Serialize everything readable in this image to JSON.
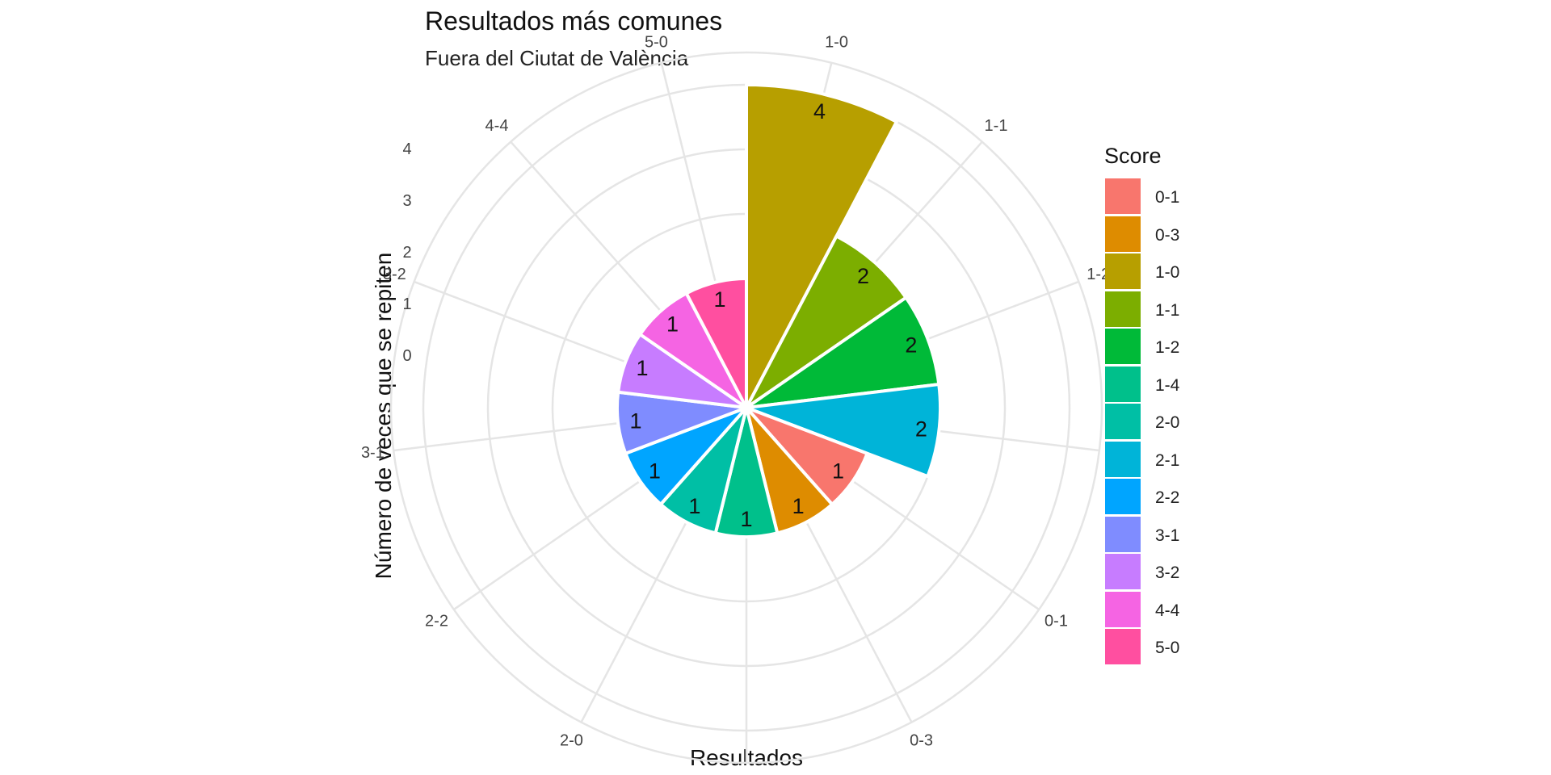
{
  "chart_data": {
    "type": "bar",
    "coord": "polar",
    "title": "Resultados más comunes",
    "subtitle": "Fuera del Ciutat de València",
    "xlabel": "Resultados",
    "ylabel": "Número de veces que se repiten",
    "ylim": [
      0,
      4
    ],
    "y_ticks": [
      "0",
      "1",
      "2",
      "3",
      "4"
    ],
    "grid": true,
    "legend": {
      "title": "Score",
      "position": "right"
    },
    "categories": [
      "1-0",
      "1-1",
      "1-2",
      "2-1",
      "0-1",
      "0-3",
      "1-4",
      "2-0",
      "2-2",
      "3-1",
      "3-2",
      "4-4",
      "5-0"
    ],
    "values": [
      4,
      2,
      2,
      2,
      1,
      1,
      1,
      1,
      1,
      1,
      1,
      1,
      1
    ],
    "bars": [
      {
        "label": "1-0",
        "value": 4,
        "color": "#B79F00"
      },
      {
        "label": "1-1",
        "value": 2,
        "color": "#7CAE00"
      },
      {
        "label": "1-2",
        "value": 2,
        "color": "#00BA38"
      },
      {
        "label": "2-1",
        "value": 2,
        "color": "#00B4D8"
      },
      {
        "label": "0-1",
        "value": 1,
        "color": "#F8766D"
      },
      {
        "label": "0-3",
        "value": 1,
        "color": "#DE8C00"
      },
      {
        "label": "1-4",
        "value": 1,
        "color": "#00C08B"
      },
      {
        "label": "2-0",
        "value": 1,
        "color": "#00BFA5"
      },
      {
        "label": "2-2",
        "value": 1,
        "color": "#00A5FF"
      },
      {
        "label": "3-1",
        "value": 1,
        "color": "#7F8CFF"
      },
      {
        "label": "3-2",
        "value": 1,
        "color": "#C77CFF"
      },
      {
        "label": "4-4",
        "value": 1,
        "color": "#F564E3"
      },
      {
        "label": "5-0",
        "value": 1,
        "color": "#FF4FA0"
      }
    ],
    "legend_items": [
      {
        "label": "0-1",
        "color": "#F8766D"
      },
      {
        "label": "0-3",
        "color": "#DE8C00"
      },
      {
        "label": "1-0",
        "color": "#B79F00"
      },
      {
        "label": "1-1",
        "color": "#7CAE00"
      },
      {
        "label": "1-2",
        "color": "#00BA38"
      },
      {
        "label": "1-4",
        "color": "#00C08B"
      },
      {
        "label": "2-0",
        "color": "#00BFA5"
      },
      {
        "label": "2-1",
        "color": "#00B4D8"
      },
      {
        "label": "2-2",
        "color": "#00A5FF"
      },
      {
        "label": "3-1",
        "color": "#7F8CFF"
      },
      {
        "label": "3-2",
        "color": "#C77CFF"
      },
      {
        "label": "4-4",
        "color": "#F564E3"
      },
      {
        "label": "5-0",
        "color": "#FF4FA0"
      }
    ],
    "colors": {
      "grid": "#E5E5E5",
      "background": "#FFFFFF",
      "text": "#111111"
    }
  }
}
